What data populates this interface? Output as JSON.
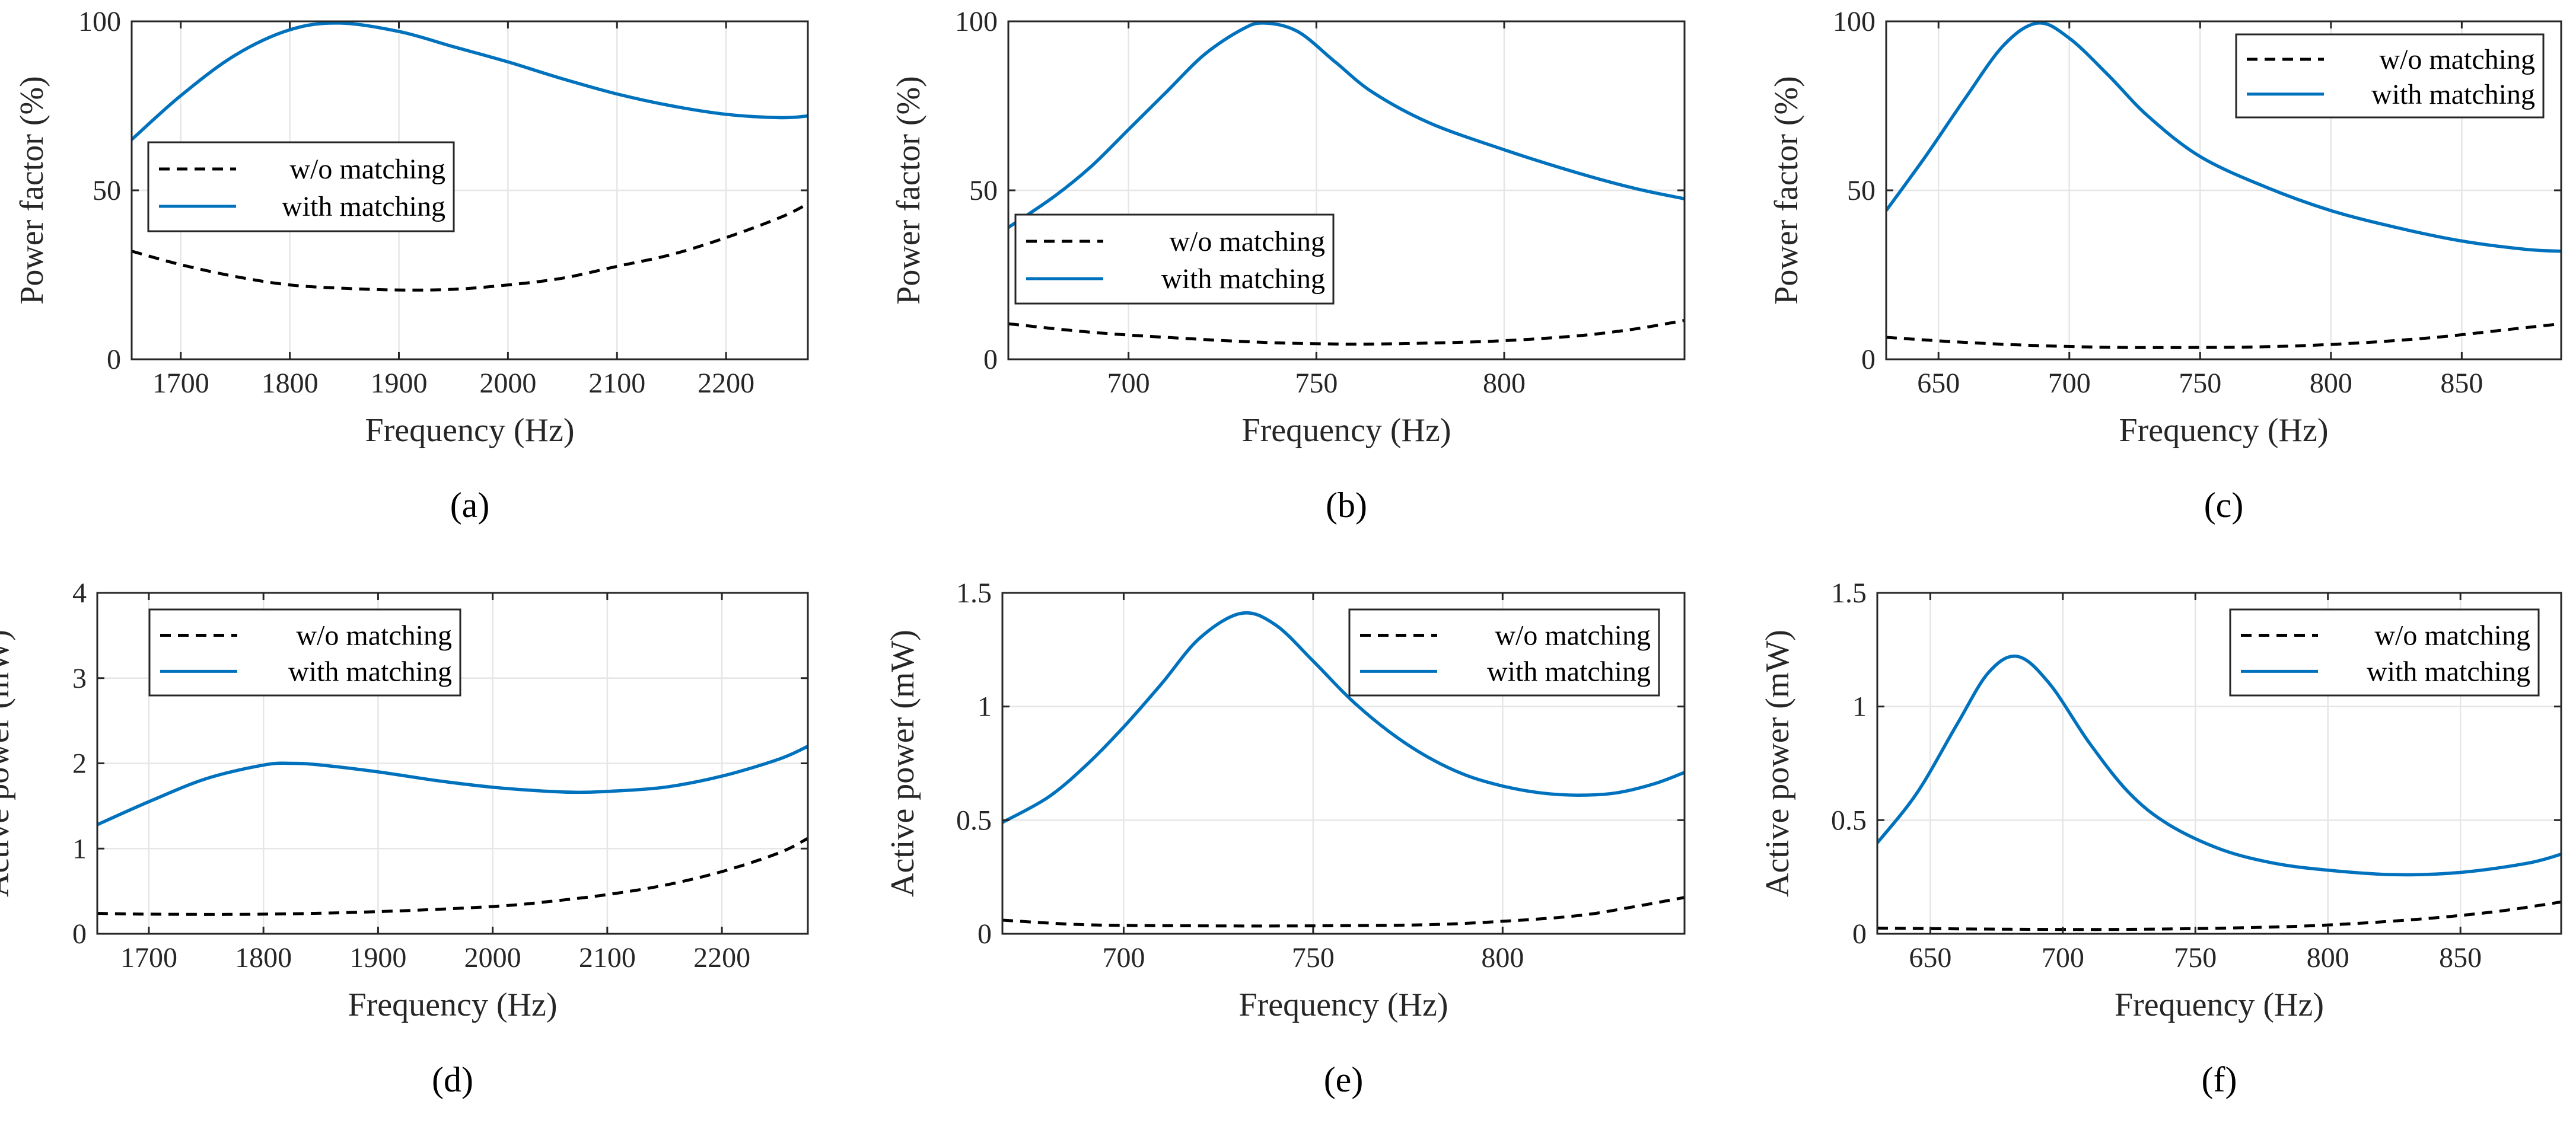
{
  "colors": {
    "with_matching": "#0072BD",
    "without_matching": "#000000"
  },
  "chart_data": [
    {
      "id": "a",
      "type": "line",
      "caption": "(a)",
      "xlabel": "Frequency (Hz)",
      "ylabel": "Power factor (%)",
      "xlim": [
        1655,
        2275
      ],
      "ylim": [
        0,
        100
      ],
      "xticks": [
        1700,
        1800,
        1900,
        2000,
        2100,
        2200
      ],
      "xtick_labels": [
        "1700",
        "1800",
        "1900",
        "2000",
        "2100",
        "2200"
      ],
      "yticks": [
        0,
        50,
        100
      ],
      "ytick_labels": [
        "0",
        "50",
        "100"
      ],
      "legend_position": "middle-left",
      "grid": true,
      "series": [
        {
          "name": "w/o matching",
          "style": "dashed",
          "x": [
            1655,
            1700,
            1750,
            1800,
            1850,
            1900,
            1950,
            2000,
            2050,
            2100,
            2150,
            2200,
            2250,
            2275
          ],
          "y": [
            32,
            28,
            24.5,
            22,
            21,
            20.5,
            20.7,
            22,
            24,
            27.5,
            31,
            36,
            42,
            46
          ]
        },
        {
          "name": "with matching",
          "style": "solid",
          "x": [
            1655,
            1700,
            1750,
            1800,
            1845,
            1900,
            1950,
            2000,
            2050,
            2100,
            2150,
            2200,
            2250,
            2275
          ],
          "y": [
            65,
            78,
            90,
            97.5,
            99.5,
            97,
            92.5,
            88,
            83,
            78.5,
            75,
            72.5,
            71.5,
            72
          ]
        }
      ]
    },
    {
      "id": "b",
      "type": "line",
      "caption": "(b)",
      "xlabel": "Frequency (Hz)",
      "ylabel": "Power factor (%)",
      "xlim": [
        668,
        848
      ],
      "ylim": [
        0,
        100
      ],
      "xticks": [
        700,
        750,
        800
      ],
      "xtick_labels": [
        "700",
        "750",
        "800"
      ],
      "yticks": [
        0,
        50,
        100
      ],
      "ytick_labels": [
        "0",
        "50",
        "100"
      ],
      "legend_position": "bottom-left",
      "grid": true,
      "series": [
        {
          "name": "w/o matching",
          "style": "dashed",
          "x": [
            668,
            690,
            710,
            736,
            760,
            780,
            800,
            820,
            835,
            848
          ],
          "y": [
            10.5,
            8,
            6.5,
            5,
            4.5,
            4.8,
            5.5,
            7,
            9,
            11.5
          ]
        },
        {
          "name": "with matching",
          "style": "solid",
          "x": [
            668,
            680,
            690,
            700,
            710,
            720,
            730,
            736,
            745,
            755,
            765,
            780,
            800,
            820,
            835,
            848
          ],
          "y": [
            39,
            48,
            57,
            68,
            79,
            90,
            97.5,
            99.5,
            97,
            88,
            79,
            70,
            62,
            55,
            50.5,
            47.5
          ]
        }
      ]
    },
    {
      "id": "c",
      "type": "line",
      "caption": "(c)",
      "xlabel": "Frequency (Hz)",
      "ylabel": "Power factor (%)",
      "xlim": [
        630,
        888
      ],
      "ylim": [
        0,
        100
      ],
      "xticks": [
        650,
        700,
        750,
        800,
        850
      ],
      "xtick_labels": [
        "650",
        "700",
        "750",
        "800",
        "850"
      ],
      "yticks": [
        0,
        50,
        100
      ],
      "ytick_labels": [
        "0",
        "50",
        "100"
      ],
      "legend_position": "top-right",
      "grid": true,
      "series": [
        {
          "name": "w/o matching",
          "style": "dashed",
          "x": [
            630,
            660,
            690,
            720,
            750,
            780,
            810,
            840,
            870,
            888
          ],
          "y": [
            6.5,
            5,
            4,
            3.5,
            3.5,
            3.8,
            4.8,
            6.5,
            9,
            10.5
          ]
        },
        {
          "name": "with matching",
          "style": "solid",
          "x": [
            630,
            645,
            660,
            675,
            688,
            700,
            715,
            730,
            750,
            775,
            800,
            825,
            850,
            875,
            888
          ],
          "y": [
            44,
            60,
            77,
            93,
            99.5,
            95,
            84,
            72,
            60,
            51,
            44,
            39,
            35,
            32.5,
            32
          ]
        }
      ]
    },
    {
      "id": "d",
      "type": "line",
      "caption": "(d)",
      "xlabel": "Frequency (Hz)",
      "ylabel": "Active power (mW)",
      "xlim": [
        1655,
        2275
      ],
      "ylim": [
        0,
        4
      ],
      "xticks": [
        1700,
        1800,
        1900,
        2000,
        2100,
        2200
      ],
      "xtick_labels": [
        "1700",
        "1800",
        "1900",
        "2000",
        "2100",
        "2200"
      ],
      "yticks": [
        0,
        1,
        2,
        3,
        4
      ],
      "ytick_labels": [
        "0",
        "1",
        "2",
        "3",
        "4"
      ],
      "legend_position": "top-left",
      "grid": true,
      "series": [
        {
          "name": "w/o matching",
          "style": "dashed",
          "x": [
            1655,
            1700,
            1800,
            1900,
            2000,
            2050,
            2100,
            2150,
            2200,
            2250,
            2275
          ],
          "y": [
            0.24,
            0.23,
            0.23,
            0.26,
            0.32,
            0.38,
            0.46,
            0.57,
            0.73,
            0.95,
            1.12
          ]
        },
        {
          "name": "with matching",
          "style": "solid",
          "x": [
            1655,
            1700,
            1750,
            1800,
            1825,
            1850,
            1900,
            1950,
            2000,
            2050,
            2075,
            2100,
            2150,
            2200,
            2250,
            2275
          ],
          "y": [
            1.28,
            1.55,
            1.82,
            1.98,
            2.0,
            1.98,
            1.9,
            1.8,
            1.72,
            1.67,
            1.66,
            1.67,
            1.72,
            1.85,
            2.05,
            2.2
          ]
        }
      ]
    },
    {
      "id": "e",
      "type": "line",
      "caption": "(e)",
      "xlabel": "Frequency (Hz)",
      "ylabel": "Active power (mW)",
      "xlim": [
        668,
        848
      ],
      "ylim": [
        0,
        1.5
      ],
      "xticks": [
        700,
        750,
        800
      ],
      "xtick_labels": [
        "700",
        "750",
        "800"
      ],
      "yticks": [
        0,
        0.5,
        1,
        1.5
      ],
      "ytick_labels": [
        "0",
        "0.5",
        "1",
        "1.5"
      ],
      "legend_position": "top-right",
      "grid": true,
      "series": [
        {
          "name": "w/o matching",
          "style": "dashed",
          "x": [
            668,
            690,
            720,
            750,
            780,
            800,
            820,
            835,
            848
          ],
          "y": [
            0.06,
            0.04,
            0.035,
            0.035,
            0.04,
            0.055,
            0.08,
            0.12,
            0.16
          ]
        },
        {
          "name": "with matching",
          "style": "solid",
          "x": [
            668,
            680,
            690,
            700,
            710,
            720,
            731,
            740,
            750,
            760,
            770,
            780,
            790,
            800,
            810,
            820,
            830,
            840,
            848
          ],
          "y": [
            0.49,
            0.6,
            0.74,
            0.91,
            1.1,
            1.3,
            1.41,
            1.36,
            1.2,
            1.03,
            0.89,
            0.78,
            0.7,
            0.65,
            0.62,
            0.61,
            0.62,
            0.66,
            0.71
          ]
        }
      ]
    },
    {
      "id": "f",
      "type": "line",
      "caption": "(f)",
      "xlabel": "Frequency (Hz)",
      "ylabel": "Active power (mW)",
      "xlim": [
        630,
        888
      ],
      "ylim": [
        0,
        1.5
      ],
      "xticks": [
        650,
        700,
        750,
        800,
        850
      ],
      "xtick_labels": [
        "650",
        "700",
        "750",
        "800",
        "850"
      ],
      "yticks": [
        0,
        0.5,
        1,
        1.5
      ],
      "ytick_labels": [
        "0",
        "0.5",
        "1",
        "1.5"
      ],
      "legend_position": "top-right",
      "grid": true,
      "series": [
        {
          "name": "w/o matching",
          "style": "dashed",
          "x": [
            630,
            680,
            730,
            780,
            810,
            840,
            865,
            888
          ],
          "y": [
            0.025,
            0.02,
            0.02,
            0.03,
            0.045,
            0.07,
            0.1,
            0.14
          ]
        },
        {
          "name": "with matching",
          "style": "solid",
          "x": [
            630,
            645,
            660,
            672,
            683,
            695,
            710,
            725,
            740,
            760,
            780,
            800,
            825,
            850,
            875,
            888
          ],
          "y": [
            0.4,
            0.62,
            0.92,
            1.15,
            1.22,
            1.1,
            0.84,
            0.62,
            0.48,
            0.37,
            0.31,
            0.28,
            0.26,
            0.27,
            0.31,
            0.35
          ]
        }
      ]
    }
  ]
}
